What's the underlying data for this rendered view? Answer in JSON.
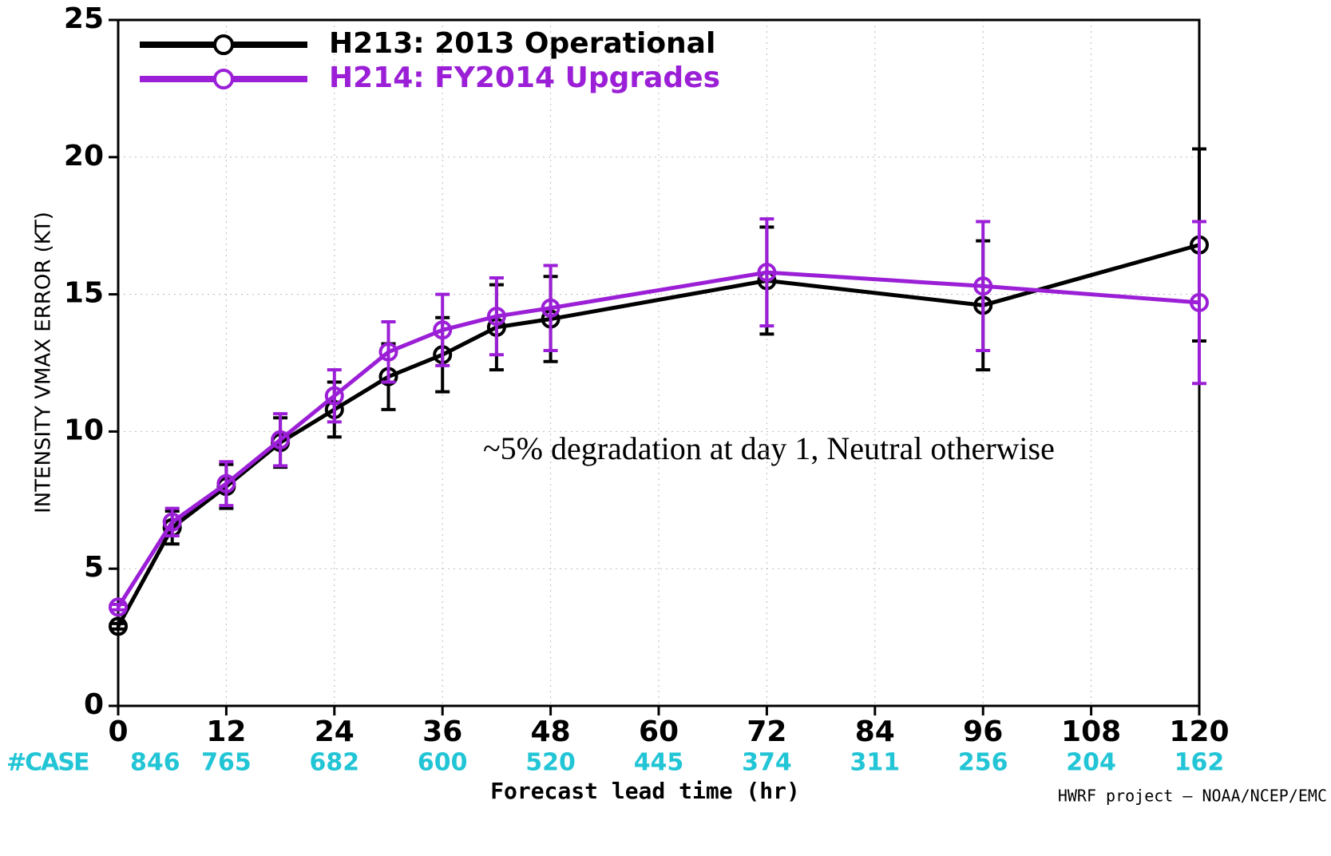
{
  "chart_data": {
    "type": "line",
    "y_label": "INTENSITY VMAX ERROR (KT)",
    "x_label": "Forecast lead time (hr)",
    "annotation": "~5% degradation at day 1, Neutral otherwise",
    "footer": "HWRF project – NOAA/NCEP/EMC",
    "case_label": "#CASE",
    "case_counts": [
      846,
      765,
      682,
      600,
      520,
      445,
      374,
      311,
      256,
      204,
      162
    ],
    "x": [
      0,
      6,
      12,
      18,
      24,
      30,
      36,
      42,
      48,
      72,
      96,
      120
    ],
    "series": [
      {
        "name": "H213: 2013 Operational",
        "color": "#000000",
        "values": [
          2.9,
          6.5,
          8.0,
          9.6,
          10.8,
          12.0,
          12.8,
          13.8,
          14.1,
          15.5,
          14.6,
          16.8
        ],
        "errors": [
          0.1,
          0.6,
          0.8,
          0.9,
          1.0,
          1.2,
          1.35,
          1.55,
          1.55,
          1.95,
          2.35,
          3.5
        ]
      },
      {
        "name": "H214: FY2014 Upgrades",
        "color": "#9b1fd6",
        "values": [
          3.6,
          6.7,
          8.1,
          9.7,
          11.3,
          12.9,
          13.7,
          14.2,
          14.5,
          15.8,
          15.3,
          14.7
        ],
        "errors": [
          0.1,
          0.5,
          0.8,
          0.95,
          0.95,
          1.1,
          1.3,
          1.4,
          1.55,
          1.95,
          2.35,
          2.95
        ]
      }
    ],
    "xlim": [
      0,
      120
    ],
    "xticks": [
      0,
      12,
      24,
      36,
      48,
      60,
      72,
      84,
      96,
      108,
      120
    ],
    "ylim": [
      0,
      25
    ],
    "yticks": [
      0,
      5,
      10,
      15,
      20,
      25
    ],
    "grid": true,
    "legend": "upper left",
    "case_color": "#22c5d5"
  }
}
